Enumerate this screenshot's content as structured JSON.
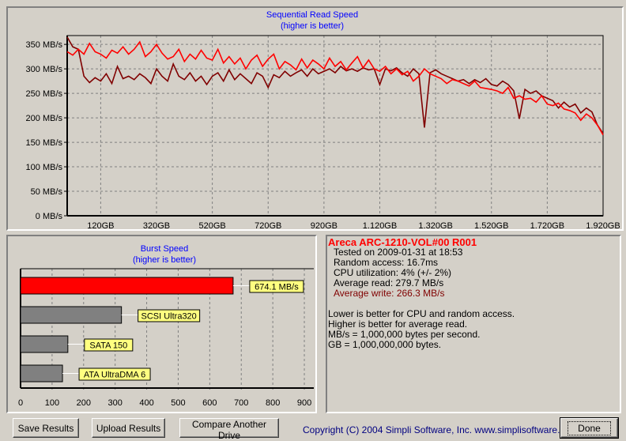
{
  "colors": {
    "read": "#ff0000",
    "write": "#800000",
    "title": "#0000ff",
    "bar_drive": "#ff0000",
    "bar_ref": "#808080",
    "label_bg": "#ffff80"
  },
  "chart_data": [
    {
      "type": "line",
      "title": "Sequential Read Speed",
      "subtitle": "(higher is better)",
      "xlim": [
        0,
        1920
      ],
      "ylim": [
        0,
        368
      ],
      "grid": true,
      "y_ticks": [
        0,
        50,
        100,
        150,
        200,
        250,
        300,
        350
      ],
      "y_tick_labels": [
        "0 MB/s",
        "50 MB/s",
        "100 MB/s",
        "150 MB/s",
        "200 MB/s",
        "250 MB/s",
        "300 MB/s",
        "350 MB/s"
      ],
      "x_ticks": [
        120,
        320,
        520,
        720,
        920,
        1120,
        1320,
        1520,
        1720,
        1920
      ],
      "x_tick_labels": [
        "120GB",
        "320GB",
        "520GB",
        "720GB",
        "920GB",
        "1.120GB",
        "1.320GB",
        "1.520GB",
        "1.720GB",
        "1.920GB"
      ],
      "x_step": 20,
      "series": [
        {
          "color": "#ff0000",
          "values": [
            335,
            328,
            340,
            330,
            352,
            335,
            330,
            322,
            338,
            332,
            345,
            330,
            340,
            355,
            325,
            335,
            350,
            332,
            320,
            325,
            340,
            315,
            330,
            320,
            338,
            322,
            318,
            340,
            312,
            325,
            310,
            322,
            300,
            318,
            328,
            305,
            320,
            330,
            300,
            315,
            308,
            298,
            320,
            302,
            318,
            310,
            300,
            322,
            305,
            315,
            298,
            312,
            325,
            302,
            318,
            300,
            295,
            305,
            290,
            300,
            288,
            295,
            275,
            285,
            300,
            290,
            285,
            280,
            270,
            278,
            275,
            270,
            265,
            275,
            262,
            260,
            258,
            255,
            250,
            262,
            240,
            245,
            238,
            240,
            232,
            245,
            228,
            225,
            230,
            218,
            215,
            210,
            195,
            208,
            200,
            185,
            165
          ]
        },
        {
          "color": "#800000",
          "values": [
            365,
            345,
            340,
            285,
            272,
            282,
            275,
            290,
            270,
            305,
            280,
            285,
            278,
            290,
            282,
            270,
            300,
            285,
            275,
            310,
            285,
            278,
            292,
            275,
            285,
            268,
            285,
            292,
            275,
            298,
            278,
            290,
            280,
            270,
            292,
            285,
            262,
            288,
            282,
            295,
            285,
            292,
            298,
            285,
            300,
            290,
            295,
            300,
            292,
            305,
            296,
            300,
            295,
            302,
            298,
            300,
            268,
            300,
            296,
            302,
            292,
            285,
            300,
            290,
            180,
            292,
            298,
            290,
            285,
            280,
            275,
            278,
            270,
            278,
            272,
            280,
            268,
            265,
            275,
            268,
            255,
            198,
            258,
            250,
            255,
            245,
            240,
            235,
            220,
            232,
            222,
            228,
            210,
            220,
            212,
            185,
            168
          ]
        }
      ]
    },
    {
      "type": "bar",
      "orientation": "horizontal",
      "title": "Burst Speed",
      "subtitle": "(higher is better)",
      "xlim": [
        0,
        930
      ],
      "grid": true,
      "x_ticks": [
        0,
        100,
        200,
        300,
        400,
        500,
        600,
        700,
        800,
        900
      ],
      "x_tick_labels": [
        "0",
        "100",
        "200",
        "300",
        "400",
        "500",
        "600",
        "700",
        "800",
        "900"
      ],
      "bars": [
        {
          "label": "674.1 MB/s",
          "value": 674.1,
          "color": "#ff0000"
        },
        {
          "label": "SCSI Ultra320",
          "value": 320,
          "color": "#808080"
        },
        {
          "label": "SATA 150",
          "value": 150,
          "color": "#808080"
        },
        {
          "label": "ATA UltraDMA 6",
          "value": 133,
          "color": "#808080"
        }
      ]
    }
  ],
  "info": {
    "drive": "Areca ARC-1210-VOL#00 R001",
    "tested": "Tested on 2009-01-31 at 18:53",
    "random_access": "Random access: 16.7ms",
    "cpu": "CPU utilization: 4% (+/- 2%)",
    "avg_read": "Average read: 279.7 MB/s",
    "avg_write": "Average write: 266.3 MB/s",
    "notes": [
      "Lower is better for CPU and random access.",
      "Higher is better for average read.",
      "MB/s = 1,000,000 bytes per second.",
      "GB = 1,000,000,000 bytes."
    ]
  },
  "buttons": {
    "save": "Save Results",
    "upload": "Upload Results",
    "compare": "Compare Another Drive",
    "done": "Done"
  },
  "copyright": "Copyright (C) 2004 Simpli Software, Inc. www.simplisoftware.com"
}
